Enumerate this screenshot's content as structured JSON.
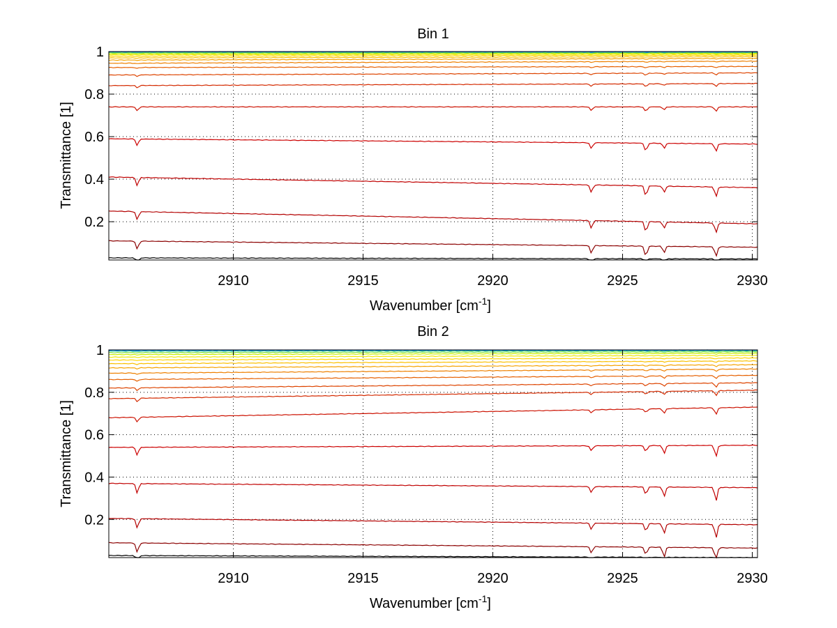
{
  "figure": {
    "background": "#ffffff",
    "axes_color": "#000000",
    "grid_color": "#000000"
  },
  "chart_data": [
    {
      "type": "line",
      "title": "Bin 1",
      "xlabel": "Wavenumber [cm",
      "xlabel_superscript": "-1",
      "xlabel_suffix": "]",
      "ylabel": "Transmittance [1]",
      "xlim": [
        2905.2,
        2930.2
      ],
      "ylim": [
        0.02,
        1.0
      ],
      "xticks": [
        2910,
        2915,
        2920,
        2925,
        2930
      ],
      "yticks": [
        0.2,
        0.4,
        0.6,
        0.8,
        1
      ],
      "xtick_labels": [
        "2910",
        "2915",
        "2920",
        "2925",
        "2930"
      ],
      "ytick_labels": [
        "0.2",
        "0.4",
        "0.6",
        "0.8",
        "1"
      ],
      "grid": true,
      "absorption_lines": [
        {
          "x": 2906.3,
          "depth": 0.6
        },
        {
          "x": 2923.8,
          "depth": 0.55
        },
        {
          "x": 2925.9,
          "depth": 0.75
        },
        {
          "x": 2926.6,
          "depth": 0.45
        },
        {
          "x": 2928.6,
          "depth": 0.7
        }
      ],
      "series": [
        {
          "color": "#000000",
          "start": 0.03,
          "end": 0.025
        },
        {
          "color": "#8b0000",
          "start": 0.11,
          "end": 0.08
        },
        {
          "color": "#b30000",
          "start": 0.25,
          "end": 0.19
        },
        {
          "color": "#c00000",
          "start": 0.41,
          "end": 0.36
        },
        {
          "color": "#cc0000",
          "start": 0.59,
          "end": 0.565
        },
        {
          "color": "#cc1100",
          "start": 0.74,
          "end": 0.74
        },
        {
          "color": "#d42a00",
          "start": 0.84,
          "end": 0.85
        },
        {
          "color": "#dd4400",
          "start": 0.89,
          "end": 0.9
        },
        {
          "color": "#e66000",
          "start": 0.925,
          "end": 0.93
        },
        {
          "color": "#ee8000",
          "start": 0.945,
          "end": 0.955
        },
        {
          "color": "#f5a300",
          "start": 0.96,
          "end": 0.968
        },
        {
          "color": "#fac000",
          "start": 0.97,
          "end": 0.976
        },
        {
          "color": "#ffd400",
          "start": 0.978,
          "end": 0.983
        },
        {
          "color": "#f0e800",
          "start": 0.985,
          "end": 0.988
        },
        {
          "color": "#c8f000",
          "start": 0.99,
          "end": 0.992
        },
        {
          "color": "#80e040",
          "start": 0.994,
          "end": 0.995
        },
        {
          "color": "#30c0a0",
          "start": 0.997,
          "end": 0.997
        },
        {
          "color": "#0080ff",
          "start": 0.999,
          "end": 0.999
        }
      ]
    },
    {
      "type": "line",
      "title": "Bin 2",
      "xlabel": "Wavenumber [cm",
      "xlabel_superscript": "-1",
      "xlabel_suffix": "]",
      "ylabel": "Transmittance [1]",
      "xlim": [
        2905.2,
        2930.2
      ],
      "ylim": [
        0.02,
        1.0
      ],
      "xticks": [
        2910,
        2915,
        2920,
        2925,
        2930
      ],
      "yticks": [
        0.2,
        0.4,
        0.6,
        0.8,
        1
      ],
      "xtick_labels": [
        "2910",
        "2915",
        "2920",
        "2925",
        "2930"
      ],
      "ytick_labels": [
        "0.2",
        "0.4",
        "0.6",
        "0.8",
        "1"
      ],
      "grid": true,
      "absorption_lines": [
        {
          "x": 2906.3,
          "depth": 0.7
        },
        {
          "x": 2923.8,
          "depth": 0.45
        },
        {
          "x": 2925.9,
          "depth": 0.55
        },
        {
          "x": 2926.6,
          "depth": 0.7
        },
        {
          "x": 2928.6,
          "depth": 1.0
        }
      ],
      "series": [
        {
          "color": "#000000",
          "start": 0.03,
          "end": 0.02
        },
        {
          "color": "#8b0000",
          "start": 0.09,
          "end": 0.065
        },
        {
          "color": "#b30000",
          "start": 0.205,
          "end": 0.175
        },
        {
          "color": "#c00000",
          "start": 0.37,
          "end": 0.35
        },
        {
          "color": "#cc0000",
          "start": 0.54,
          "end": 0.55
        },
        {
          "color": "#cc1100",
          "start": 0.68,
          "end": 0.73
        },
        {
          "color": "#d42a00",
          "start": 0.77,
          "end": 0.81
        },
        {
          "color": "#dd4400",
          "start": 0.82,
          "end": 0.845
        },
        {
          "color": "#e66000",
          "start": 0.86,
          "end": 0.88
        },
        {
          "color": "#ee8000",
          "start": 0.89,
          "end": 0.91
        },
        {
          "color": "#f5a300",
          "start": 0.915,
          "end": 0.93
        },
        {
          "color": "#fac000",
          "start": 0.935,
          "end": 0.948
        },
        {
          "color": "#ffd400",
          "start": 0.952,
          "end": 0.962
        },
        {
          "color": "#f0e800",
          "start": 0.966,
          "end": 0.974
        },
        {
          "color": "#c8f000",
          "start": 0.978,
          "end": 0.984
        },
        {
          "color": "#80e040",
          "start": 0.987,
          "end": 0.991
        },
        {
          "color": "#30c0a0",
          "start": 0.994,
          "end": 0.996
        },
        {
          "color": "#0080ff",
          "start": 0.998,
          "end": 0.999
        }
      ]
    }
  ]
}
